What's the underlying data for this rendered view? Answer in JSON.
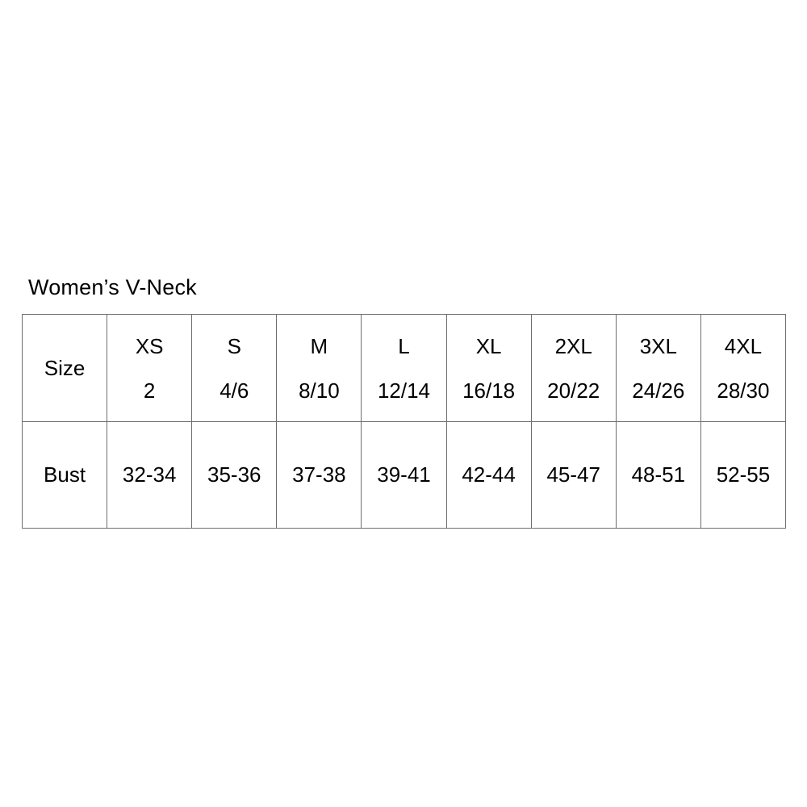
{
  "size_chart": {
    "title": "Women’s V-Neck",
    "corner_label": "Size",
    "measurement_row_label": "Bust",
    "columns": [
      {
        "size": "XS",
        "numeric": "2",
        "bust": "32-34"
      },
      {
        "size": "S",
        "numeric": "4/6",
        "bust": "35-36"
      },
      {
        "size": "M",
        "numeric": "8/10",
        "bust": "37-38"
      },
      {
        "size": "L",
        "numeric": "12/14",
        "bust": "39-41"
      },
      {
        "size": "XL",
        "numeric": "16/18",
        "bust": "42-44"
      },
      {
        "size": "2XL",
        "numeric": "20/22",
        "bust": "45-47"
      },
      {
        "size": "3XL",
        "numeric": "24/26",
        "bust": "48-51"
      },
      {
        "size": "4XL",
        "numeric": "28/30",
        "bust": "52-55"
      }
    ],
    "colors": {
      "background": "#ffffff",
      "text": "#000000",
      "table_border": "#6e6e6e"
    }
  }
}
